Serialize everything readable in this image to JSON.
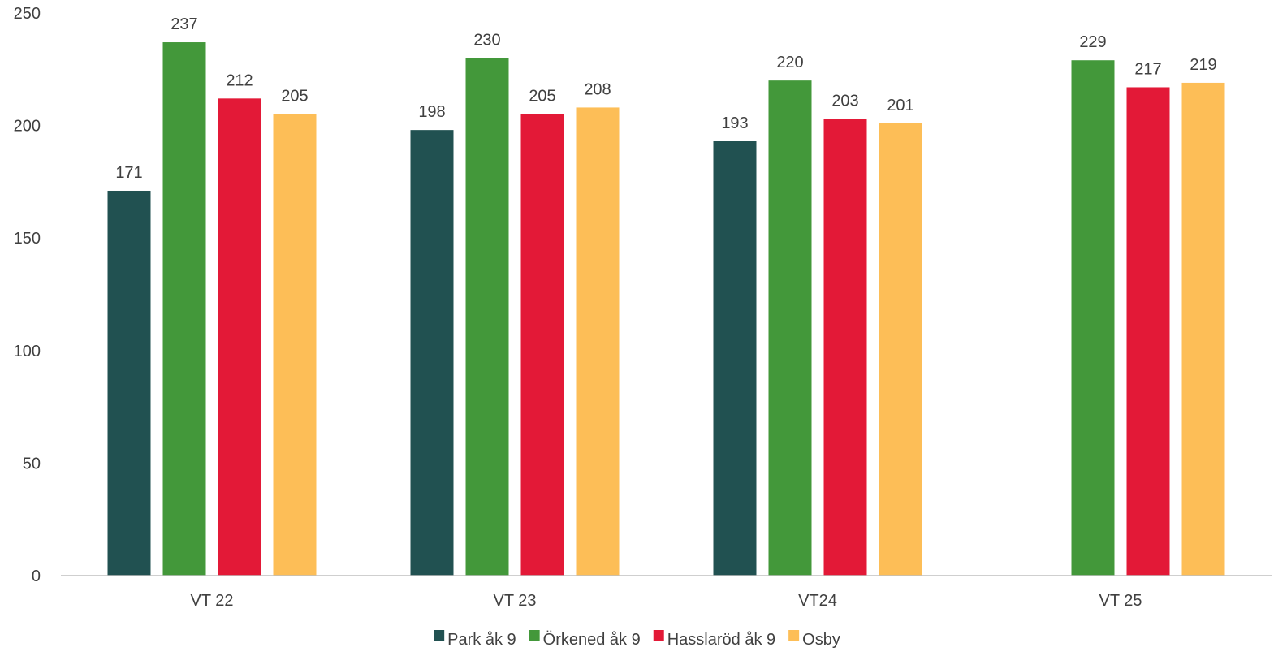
{
  "chart_data": {
    "type": "bar",
    "categories": [
      "VT 22",
      "VT 23",
      "VT24",
      "VT 25"
    ],
    "series": [
      {
        "name": "Park åk 9",
        "color": "#215151",
        "values": [
          171,
          198,
          193,
          null
        ]
      },
      {
        "name": "Örkened åk 9",
        "color": "#43983A",
        "values": [
          237,
          230,
          220,
          229
        ]
      },
      {
        "name": "Hassla­röd åk 9",
        "color": "#E31937",
        "values": [
          212,
          205,
          203,
          217
        ]
      },
      {
        "name": "Osby",
        "color": "#FDBE57",
        "values": [
          205,
          208,
          201,
          219
        ]
      }
    ],
    "ylim": [
      0,
      250
    ],
    "yticks": [
      0,
      50,
      100,
      150,
      200,
      250
    ],
    "grid": false,
    "legend_position": "bottom",
    "axis_color": "#BFBFBF"
  }
}
